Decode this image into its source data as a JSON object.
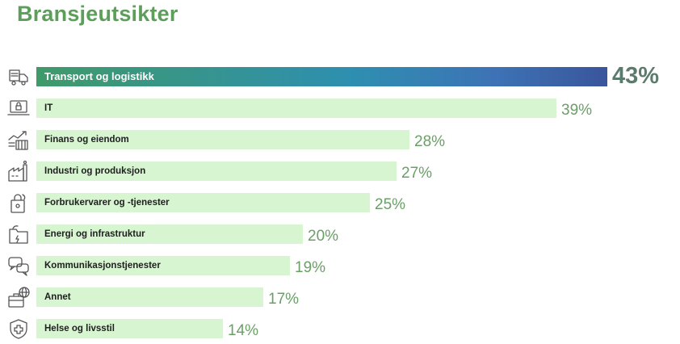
{
  "page": {
    "title": "Bransjeutsikter"
  },
  "chart_data": {
    "type": "bar",
    "orientation": "horizontal",
    "title": "Bransjeutsikter",
    "xlabel": "",
    "ylabel": "",
    "xlim": [
      0,
      45
    ],
    "grid": false,
    "legend": "none",
    "value_suffix": "%",
    "categories": [
      "Transport og logistikk",
      "IT",
      "Finans og eiendom",
      "Industri og produksjon",
      "Forbrukervarer og -tjenester",
      "Energi og infrastruktur",
      "Kommunikasjonstjenester",
      "Annet",
      "Helse og livsstil"
    ],
    "values": [
      43,
      39,
      28,
      27,
      25,
      20,
      19,
      17,
      14
    ],
    "labels": [
      "43%",
      "39%",
      "28%",
      "27%",
      "25%",
      "20%",
      "19%",
      "17%",
      "14%"
    ],
    "icons": [
      "delivery-truck-icon",
      "laptop-lock-icon",
      "finance-chart-building-icon",
      "factory-icon",
      "shopping-bag-icon",
      "energy-folder-icon",
      "chat-bubbles-icon",
      "briefcase-globe-icon",
      "health-shield-icon"
    ],
    "highlight_index": 0,
    "colors": {
      "title": "#5d9e5b",
      "bar": "#d6f5d0",
      "bar_highlight_start": "#3f9a6a",
      "bar_highlight_end": "#3a559c",
      "value_text": "#6aa066",
      "value_highlight_text": "#5b7c6c",
      "icon_stroke": "#555555"
    }
  }
}
